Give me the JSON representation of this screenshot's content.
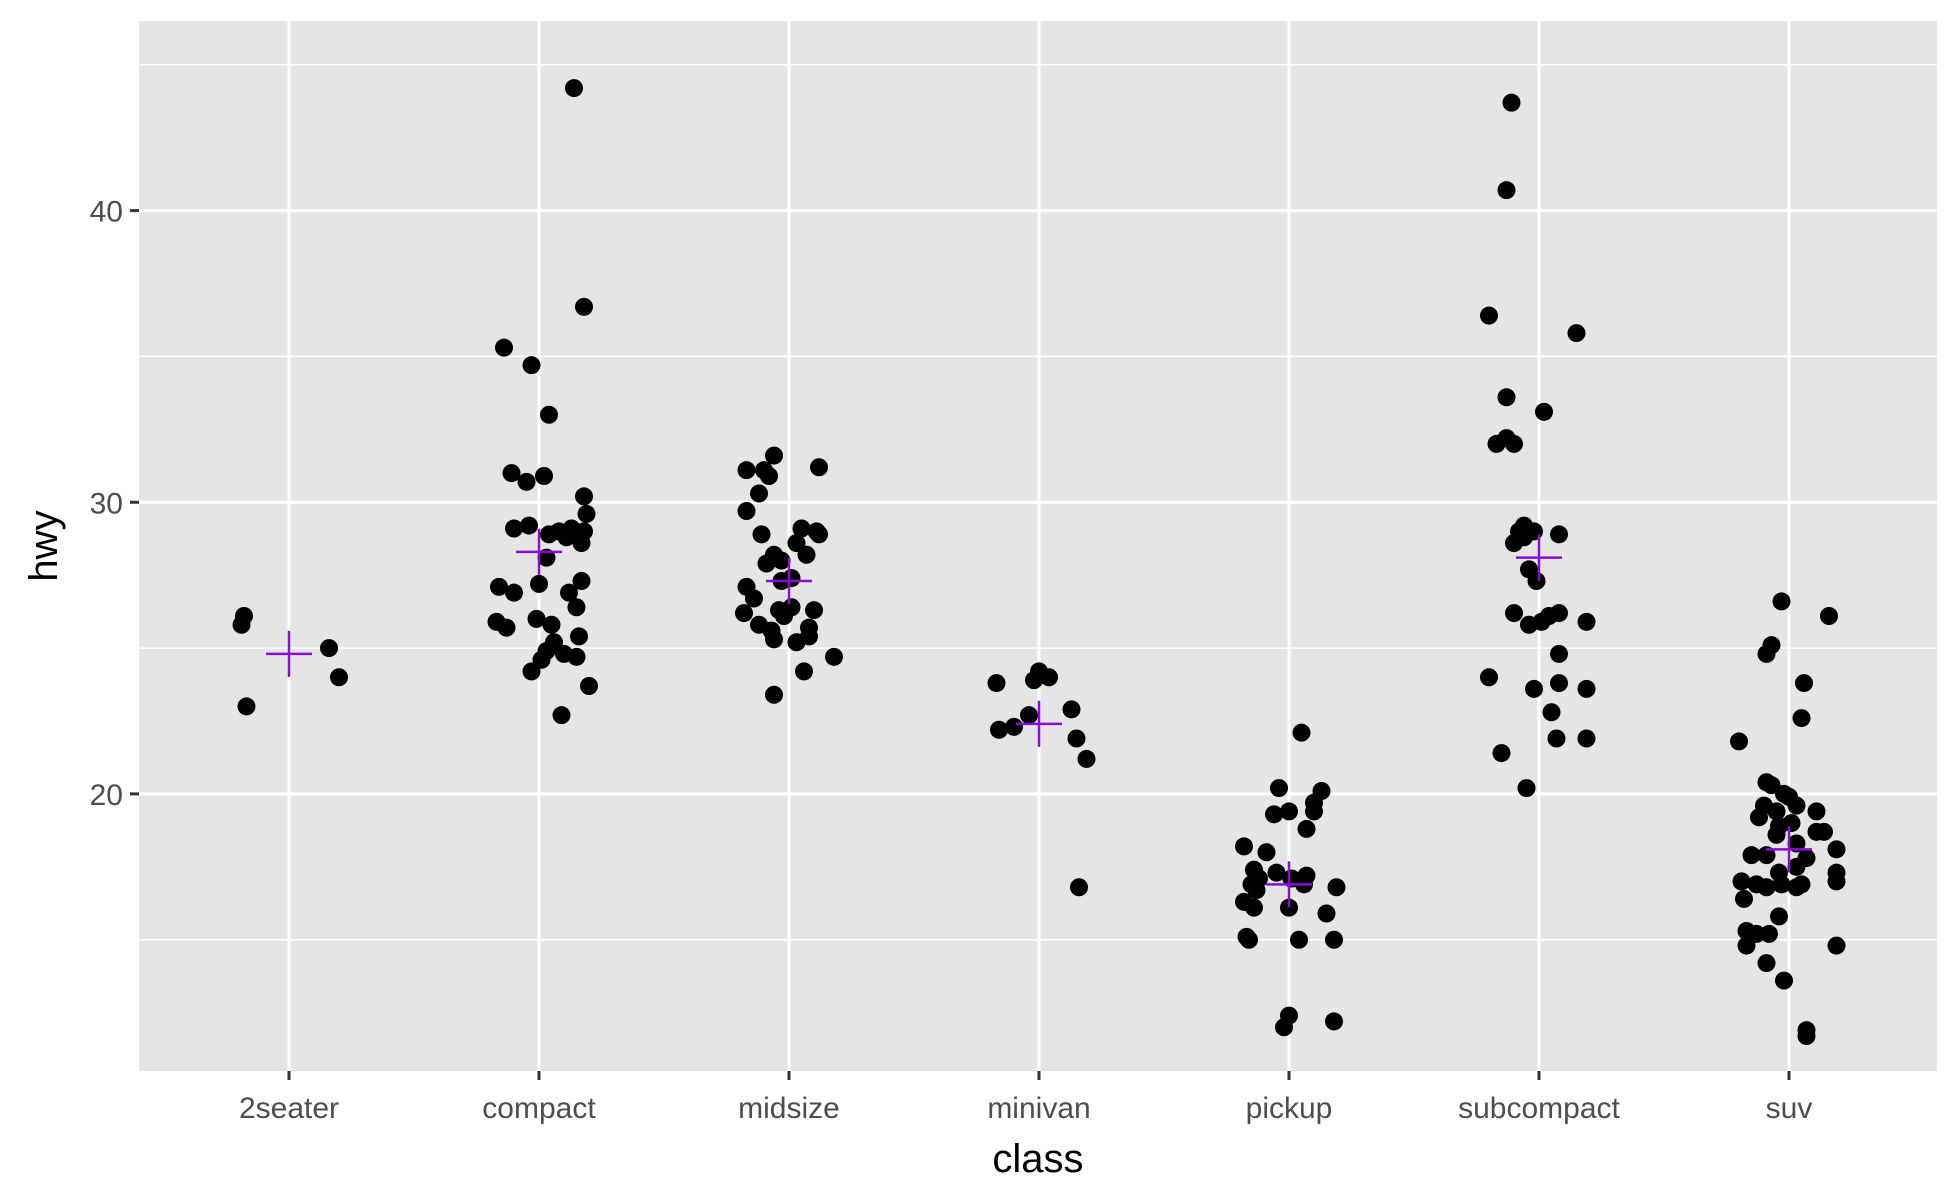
{
  "chart_data": {
    "type": "scatter",
    "xlabel": "class",
    "ylabel": "hwy",
    "categories": [
      "2seater",
      "compact",
      "midsize",
      "minivan",
      "pickup",
      "subcompact",
      "suv"
    ],
    "ylim": [
      10.5,
      46.5
    ],
    "yticks": [
      20,
      30,
      40
    ],
    "grid": true,
    "colors": {
      "panel": "#e5e5e5",
      "grid": "#ffffff",
      "point": "#000000",
      "mean_marker": "#8a0ed8",
      "tick": "#4d4d4d"
    },
    "points": [
      {
        "category": "2seater",
        "offset": -0.19,
        "y": 25.8
      },
      {
        "category": "2seater",
        "offset": -0.18,
        "y": 26.1
      },
      {
        "category": "2seater",
        "offset": -0.17,
        "y": 23.0
      },
      {
        "category": "2seater",
        "offset": 0.16,
        "y": 25.0
      },
      {
        "category": "2seater",
        "offset": 0.2,
        "y": 24.0
      },
      {
        "category": "compact",
        "offset": 0.14,
        "y": 44.2
      },
      {
        "category": "compact",
        "offset": 0.18,
        "y": 36.7
      },
      {
        "category": "compact",
        "offset": -0.14,
        "y": 35.3
      },
      {
        "category": "compact",
        "offset": -0.03,
        "y": 34.7
      },
      {
        "category": "compact",
        "offset": 0.04,
        "y": 33.0
      },
      {
        "category": "compact",
        "offset": -0.11,
        "y": 31.0
      },
      {
        "category": "compact",
        "offset": -0.05,
        "y": 30.7
      },
      {
        "category": "compact",
        "offset": 0.02,
        "y": 30.9
      },
      {
        "category": "compact",
        "offset": 0.18,
        "y": 30.2
      },
      {
        "category": "compact",
        "offset": 0.19,
        "y": 29.6
      },
      {
        "category": "compact",
        "offset": -0.1,
        "y": 29.1
      },
      {
        "category": "compact",
        "offset": -0.04,
        "y": 29.2
      },
      {
        "category": "compact",
        "offset": 0.04,
        "y": 28.9
      },
      {
        "category": "compact",
        "offset": 0.08,
        "y": 29.0
      },
      {
        "category": "compact",
        "offset": 0.13,
        "y": 29.1
      },
      {
        "category": "compact",
        "offset": 0.18,
        "y": 29.0
      },
      {
        "category": "compact",
        "offset": 0.11,
        "y": 28.8
      },
      {
        "category": "compact",
        "offset": 0.17,
        "y": 28.6
      },
      {
        "category": "compact",
        "offset": 0.03,
        "y": 28.1
      },
      {
        "category": "compact",
        "offset": -0.16,
        "y": 27.1
      },
      {
        "category": "compact",
        "offset": -0.1,
        "y": 26.9
      },
      {
        "category": "compact",
        "offset": 0.0,
        "y": 27.2
      },
      {
        "category": "compact",
        "offset": 0.12,
        "y": 26.9
      },
      {
        "category": "compact",
        "offset": 0.17,
        "y": 27.3
      },
      {
        "category": "compact",
        "offset": 0.15,
        "y": 26.4
      },
      {
        "category": "compact",
        "offset": -0.17,
        "y": 25.9
      },
      {
        "category": "compact",
        "offset": -0.13,
        "y": 25.7
      },
      {
        "category": "compact",
        "offset": -0.01,
        "y": 26.0
      },
      {
        "category": "compact",
        "offset": 0.05,
        "y": 25.8
      },
      {
        "category": "compact",
        "offset": 0.06,
        "y": 25.2
      },
      {
        "category": "compact",
        "offset": 0.16,
        "y": 25.4
      },
      {
        "category": "compact",
        "offset": 0.03,
        "y": 24.9
      },
      {
        "category": "compact",
        "offset": 0.1,
        "y": 24.8
      },
      {
        "category": "compact",
        "offset": 0.15,
        "y": 24.7
      },
      {
        "category": "compact",
        "offset": 0.01,
        "y": 24.6
      },
      {
        "category": "compact",
        "offset": -0.03,
        "y": 24.2
      },
      {
        "category": "compact",
        "offset": 0.2,
        "y": 23.7
      },
      {
        "category": "compact",
        "offset": 0.09,
        "y": 22.7
      },
      {
        "category": "midsize",
        "offset": -0.17,
        "y": 31.1
      },
      {
        "category": "midsize",
        "offset": -0.1,
        "y": 31.1
      },
      {
        "category": "midsize",
        "offset": -0.06,
        "y": 31.6
      },
      {
        "category": "midsize",
        "offset": 0.12,
        "y": 31.2
      },
      {
        "category": "midsize",
        "offset": -0.08,
        "y": 30.9
      },
      {
        "category": "midsize",
        "offset": -0.12,
        "y": 30.3
      },
      {
        "category": "midsize",
        "offset": -0.17,
        "y": 29.7
      },
      {
        "category": "midsize",
        "offset": -0.11,
        "y": 28.9
      },
      {
        "category": "midsize",
        "offset": 0.03,
        "y": 28.6
      },
      {
        "category": "midsize",
        "offset": 0.05,
        "y": 29.1
      },
      {
        "category": "midsize",
        "offset": 0.11,
        "y": 29.0
      },
      {
        "category": "midsize",
        "offset": 0.12,
        "y": 28.9
      },
      {
        "category": "midsize",
        "offset": -0.06,
        "y": 28.2
      },
      {
        "category": "midsize",
        "offset": -0.09,
        "y": 27.9
      },
      {
        "category": "midsize",
        "offset": -0.03,
        "y": 28.0
      },
      {
        "category": "midsize",
        "offset": 0.07,
        "y": 28.2
      },
      {
        "category": "midsize",
        "offset": -0.17,
        "y": 27.1
      },
      {
        "category": "midsize",
        "offset": -0.14,
        "y": 26.7
      },
      {
        "category": "midsize",
        "offset": -0.03,
        "y": 27.3
      },
      {
        "category": "midsize",
        "offset": 0.01,
        "y": 27.4
      },
      {
        "category": "midsize",
        "offset": -0.18,
        "y": 26.2
      },
      {
        "category": "midsize",
        "offset": -0.04,
        "y": 26.3
      },
      {
        "category": "midsize",
        "offset": 0.01,
        "y": 26.4
      },
      {
        "category": "midsize",
        "offset": 0.1,
        "y": 26.3
      },
      {
        "category": "midsize",
        "offset": -0.12,
        "y": 25.8
      },
      {
        "category": "midsize",
        "offset": -0.07,
        "y": 25.6
      },
      {
        "category": "midsize",
        "offset": -0.02,
        "y": 26.1
      },
      {
        "category": "midsize",
        "offset": 0.08,
        "y": 25.7
      },
      {
        "category": "midsize",
        "offset": -0.06,
        "y": 25.3
      },
      {
        "category": "midsize",
        "offset": 0.03,
        "y": 25.2
      },
      {
        "category": "midsize",
        "offset": 0.08,
        "y": 25.4
      },
      {
        "category": "midsize",
        "offset": 0.18,
        "y": 24.7
      },
      {
        "category": "midsize",
        "offset": 0.06,
        "y": 24.2
      },
      {
        "category": "midsize",
        "offset": -0.06,
        "y": 23.4
      },
      {
        "category": "minivan",
        "offset": -0.17,
        "y": 23.8
      },
      {
        "category": "minivan",
        "offset": -0.02,
        "y": 23.9
      },
      {
        "category": "minivan",
        "offset": 0.0,
        "y": 24.2
      },
      {
        "category": "minivan",
        "offset": 0.04,
        "y": 24.0
      },
      {
        "category": "minivan",
        "offset": -0.16,
        "y": 22.2
      },
      {
        "category": "minivan",
        "offset": -0.1,
        "y": 22.3
      },
      {
        "category": "minivan",
        "offset": -0.04,
        "y": 22.7
      },
      {
        "category": "minivan",
        "offset": 0.13,
        "y": 22.9
      },
      {
        "category": "minivan",
        "offset": 0.15,
        "y": 21.9
      },
      {
        "category": "minivan",
        "offset": 0.19,
        "y": 21.2
      },
      {
        "category": "minivan",
        "offset": 0.16,
        "y": 16.8
      },
      {
        "category": "pickup",
        "offset": 0.05,
        "y": 22.1
      },
      {
        "category": "pickup",
        "offset": -0.04,
        "y": 20.2
      },
      {
        "category": "pickup",
        "offset": 0.13,
        "y": 20.1
      },
      {
        "category": "pickup",
        "offset": 0.1,
        "y": 19.7
      },
      {
        "category": "pickup",
        "offset": -0.06,
        "y": 19.3
      },
      {
        "category": "pickup",
        "offset": 0.0,
        "y": 19.4
      },
      {
        "category": "pickup",
        "offset": 0.1,
        "y": 19.4
      },
      {
        "category": "pickup",
        "offset": 0.07,
        "y": 18.8
      },
      {
        "category": "pickup",
        "offset": -0.18,
        "y": 18.2
      },
      {
        "category": "pickup",
        "offset": -0.09,
        "y": 18.0
      },
      {
        "category": "pickup",
        "offset": -0.14,
        "y": 17.4
      },
      {
        "category": "pickup",
        "offset": -0.12,
        "y": 17.1
      },
      {
        "category": "pickup",
        "offset": -0.05,
        "y": 17.3
      },
      {
        "category": "pickup",
        "offset": 0.01,
        "y": 17.1
      },
      {
        "category": "pickup",
        "offset": 0.07,
        "y": 17.2
      },
      {
        "category": "pickup",
        "offset": -0.15,
        "y": 16.9
      },
      {
        "category": "pickup",
        "offset": -0.13,
        "y": 16.7
      },
      {
        "category": "pickup",
        "offset": 0.06,
        "y": 16.9
      },
      {
        "category": "pickup",
        "offset": 0.19,
        "y": 16.8
      },
      {
        "category": "pickup",
        "offset": -0.18,
        "y": 16.3
      },
      {
        "category": "pickup",
        "offset": -0.14,
        "y": 16.1
      },
      {
        "category": "pickup",
        "offset": 0.0,
        "y": 16.1
      },
      {
        "category": "pickup",
        "offset": 0.15,
        "y": 15.9
      },
      {
        "category": "pickup",
        "offset": -0.17,
        "y": 15.1
      },
      {
        "category": "pickup",
        "offset": -0.16,
        "y": 15.0
      },
      {
        "category": "pickup",
        "offset": 0.04,
        "y": 15.0
      },
      {
        "category": "pickup",
        "offset": 0.18,
        "y": 15.0
      },
      {
        "category": "pickup",
        "offset": 0.0,
        "y": 12.4
      },
      {
        "category": "pickup",
        "offset": -0.02,
        "y": 12.0
      },
      {
        "category": "pickup",
        "offset": 0.18,
        "y": 12.2
      },
      {
        "category": "subcompact",
        "offset": -0.11,
        "y": 43.7
      },
      {
        "category": "subcompact",
        "offset": -0.13,
        "y": 40.7
      },
      {
        "category": "subcompact",
        "offset": -0.2,
        "y": 36.4
      },
      {
        "category": "subcompact",
        "offset": 0.15,
        "y": 35.8
      },
      {
        "category": "subcompact",
        "offset": -0.13,
        "y": 33.6
      },
      {
        "category": "subcompact",
        "offset": 0.02,
        "y": 33.1
      },
      {
        "category": "subcompact",
        "offset": -0.13,
        "y": 32.2
      },
      {
        "category": "subcompact",
        "offset": -0.17,
        "y": 32.0
      },
      {
        "category": "subcompact",
        "offset": -0.1,
        "y": 32.0
      },
      {
        "category": "subcompact",
        "offset": -0.06,
        "y": 29.2
      },
      {
        "category": "subcompact",
        "offset": -0.08,
        "y": 29.0
      },
      {
        "category": "subcompact",
        "offset": -0.02,
        "y": 29.0
      },
      {
        "category": "subcompact",
        "offset": 0.08,
        "y": 28.9
      },
      {
        "category": "subcompact",
        "offset": -0.1,
        "y": 28.6
      },
      {
        "category": "subcompact",
        "offset": -0.06,
        "y": 28.8
      },
      {
        "category": "subcompact",
        "offset": -0.04,
        "y": 27.7
      },
      {
        "category": "subcompact",
        "offset": -0.01,
        "y": 27.3
      },
      {
        "category": "subcompact",
        "offset": -0.1,
        "y": 26.2
      },
      {
        "category": "subcompact",
        "offset": 0.04,
        "y": 26.1
      },
      {
        "category": "subcompact",
        "offset": 0.08,
        "y": 26.2
      },
      {
        "category": "subcompact",
        "offset": -0.04,
        "y": 25.8
      },
      {
        "category": "subcompact",
        "offset": 0.01,
        "y": 25.9
      },
      {
        "category": "subcompact",
        "offset": 0.19,
        "y": 25.9
      },
      {
        "category": "subcompact",
        "offset": 0.08,
        "y": 24.8
      },
      {
        "category": "subcompact",
        "offset": -0.2,
        "y": 24.0
      },
      {
        "category": "subcompact",
        "offset": -0.02,
        "y": 23.6
      },
      {
        "category": "subcompact",
        "offset": 0.08,
        "y": 23.8
      },
      {
        "category": "subcompact",
        "offset": 0.19,
        "y": 23.6
      },
      {
        "category": "subcompact",
        "offset": 0.05,
        "y": 22.8
      },
      {
        "category": "subcompact",
        "offset": 0.07,
        "y": 21.9
      },
      {
        "category": "subcompact",
        "offset": 0.19,
        "y": 21.9
      },
      {
        "category": "subcompact",
        "offset": -0.15,
        "y": 21.4
      },
      {
        "category": "subcompact",
        "offset": -0.05,
        "y": 20.2
      },
      {
        "category": "suv",
        "offset": -0.03,
        "y": 26.6
      },
      {
        "category": "suv",
        "offset": 0.16,
        "y": 26.1
      },
      {
        "category": "suv",
        "offset": -0.07,
        "y": 25.1
      },
      {
        "category": "suv",
        "offset": -0.09,
        "y": 24.8
      },
      {
        "category": "suv",
        "offset": 0.06,
        "y": 23.8
      },
      {
        "category": "suv",
        "offset": 0.05,
        "y": 22.6
      },
      {
        "category": "suv",
        "offset": -0.2,
        "y": 21.8
      },
      {
        "category": "suv",
        "offset": -0.09,
        "y": 20.4
      },
      {
        "category": "suv",
        "offset": -0.07,
        "y": 20.3
      },
      {
        "category": "suv",
        "offset": -0.02,
        "y": 20.0
      },
      {
        "category": "suv",
        "offset": 0.0,
        "y": 19.9
      },
      {
        "category": "suv",
        "offset": -0.1,
        "y": 19.6
      },
      {
        "category": "suv",
        "offset": 0.03,
        "y": 19.6
      },
      {
        "category": "suv",
        "offset": -0.05,
        "y": 19.4
      },
      {
        "category": "suv",
        "offset": 0.11,
        "y": 19.4
      },
      {
        "category": "suv",
        "offset": -0.12,
        "y": 19.2
      },
      {
        "category": "suv",
        "offset": -0.04,
        "y": 18.9
      },
      {
        "category": "suv",
        "offset": 0.01,
        "y": 19.0
      },
      {
        "category": "suv",
        "offset": -0.05,
        "y": 18.6
      },
      {
        "category": "suv",
        "offset": 0.11,
        "y": 18.7
      },
      {
        "category": "suv",
        "offset": 0.14,
        "y": 18.7
      },
      {
        "category": "suv",
        "offset": 0.03,
        "y": 18.3
      },
      {
        "category": "suv",
        "offset": 0.19,
        "y": 18.1
      },
      {
        "category": "suv",
        "offset": -0.15,
        "y": 17.9
      },
      {
        "category": "suv",
        "offset": -0.09,
        "y": 17.9
      },
      {
        "category": "suv",
        "offset": 0.07,
        "y": 17.8
      },
      {
        "category": "suv",
        "offset": -0.04,
        "y": 17.3
      },
      {
        "category": "suv",
        "offset": 0.03,
        "y": 17.5
      },
      {
        "category": "suv",
        "offset": 0.19,
        "y": 17.3
      },
      {
        "category": "suv",
        "offset": -0.19,
        "y": 17.0
      },
      {
        "category": "suv",
        "offset": -0.13,
        "y": 16.9
      },
      {
        "category": "suv",
        "offset": -0.09,
        "y": 16.8
      },
      {
        "category": "suv",
        "offset": -0.03,
        "y": 16.9
      },
      {
        "category": "suv",
        "offset": 0.03,
        "y": 16.8
      },
      {
        "category": "suv",
        "offset": 0.05,
        "y": 16.9
      },
      {
        "category": "suv",
        "offset": 0.19,
        "y": 17.0
      },
      {
        "category": "suv",
        "offset": -0.18,
        "y": 16.4
      },
      {
        "category": "suv",
        "offset": -0.04,
        "y": 15.8
      },
      {
        "category": "suv",
        "offset": -0.17,
        "y": 15.3
      },
      {
        "category": "suv",
        "offset": -0.13,
        "y": 15.2
      },
      {
        "category": "suv",
        "offset": -0.08,
        "y": 15.2
      },
      {
        "category": "suv",
        "offset": -0.17,
        "y": 14.8
      },
      {
        "category": "suv",
        "offset": 0.19,
        "y": 14.8
      },
      {
        "category": "suv",
        "offset": -0.09,
        "y": 14.2
      },
      {
        "category": "suv",
        "offset": -0.02,
        "y": 13.6
      },
      {
        "category": "suv",
        "offset": 0.07,
        "y": 11.9
      },
      {
        "category": "suv",
        "offset": 0.07,
        "y": 11.7
      }
    ],
    "means": [
      {
        "category": "2seater",
        "y": 24.8
      },
      {
        "category": "compact",
        "y": 28.3
      },
      {
        "category": "midsize",
        "y": 27.3
      },
      {
        "category": "minivan",
        "y": 22.4
      },
      {
        "category": "pickup",
        "y": 16.9
      },
      {
        "category": "subcompact",
        "y": 28.1
      },
      {
        "category": "suv",
        "y": 18.1
      }
    ]
  }
}
